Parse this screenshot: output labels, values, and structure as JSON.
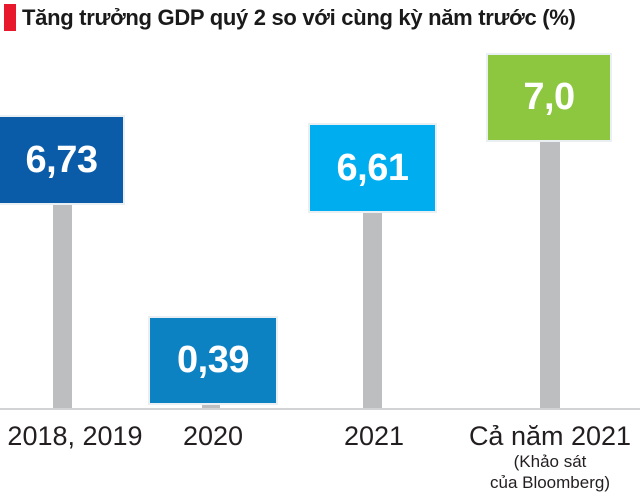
{
  "title": {
    "text": "Tăng trưởng GDP quý 2 so với cùng kỳ năm trước (%)",
    "accent_color": "#e8192c"
  },
  "chart_data": {
    "type": "bar",
    "title": "Tăng trưởng GDP quý 2 so với cùng kỳ năm trước (%)",
    "categories": [
      "2018, 2019",
      "2020",
      "2021",
      "Cả năm 2021"
    ],
    "values": [
      6.73,
      0.39,
      6.61,
      7.0
    ],
    "value_labels": [
      "6,73",
      "0,39",
      "6,61",
      "7,0"
    ],
    "colors": [
      "#0b5ca8",
      "#0d82c3",
      "#00aeef",
      "#8dc63f"
    ],
    "note_for_last_category": "(Khảo sát của Bloomberg)",
    "note_lines": [
      "(Khảo sát",
      "của Bloomberg)"
    ],
    "xlabel": "",
    "ylabel": "",
    "ylim": [
      0,
      7.5
    ],
    "grid": false,
    "legend": "none"
  },
  "palette": {
    "stick": "#bcbec0",
    "baseline": "#d1d3d4",
    "label_text": "#231f20",
    "value_text": "#ffffff",
    "background": "#ffffff"
  }
}
